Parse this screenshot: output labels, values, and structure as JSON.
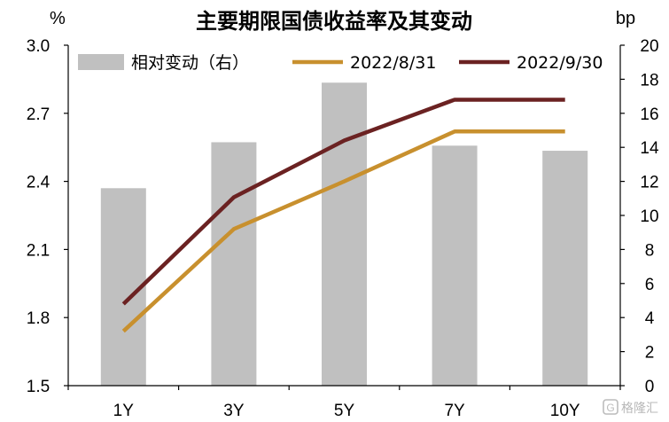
{
  "chart_data": {
    "type": "bar+line",
    "title": "主要期限国债收益率及其变动",
    "categories": [
      "1Y",
      "3Y",
      "5Y",
      "7Y",
      "10Y"
    ],
    "left_axis": {
      "unit": "%",
      "ylim": [
        1.5,
        3.0
      ],
      "ticks": [
        "1.5",
        "1.8",
        "2.1",
        "2.4",
        "2.7",
        "3.0"
      ]
    },
    "right_axis": {
      "unit": "bp",
      "ylim": [
        0,
        20
      ],
      "ticks": [
        "0",
        "2",
        "4",
        "6",
        "8",
        "10",
        "12",
        "14",
        "16",
        "18",
        "20"
      ]
    },
    "series": [
      {
        "name": "相对变动（右）",
        "kind": "bar",
        "axis": "right",
        "color": "#c0c0c0",
        "values": [
          11.6,
          14.3,
          17.8,
          14.1,
          13.8
        ]
      },
      {
        "name": "2022/8/31",
        "kind": "line",
        "axis": "left",
        "color": "#c8902e",
        "values": [
          1.74,
          2.19,
          2.4,
          2.62,
          2.62
        ]
      },
      {
        "name": "2022/9/30",
        "kind": "line",
        "axis": "left",
        "color": "#6b2222",
        "values": [
          1.86,
          2.33,
          2.58,
          2.76,
          2.76
        ]
      }
    ],
    "grid": false,
    "legend": "top"
  },
  "watermark": {
    "text": "格隆汇"
  }
}
